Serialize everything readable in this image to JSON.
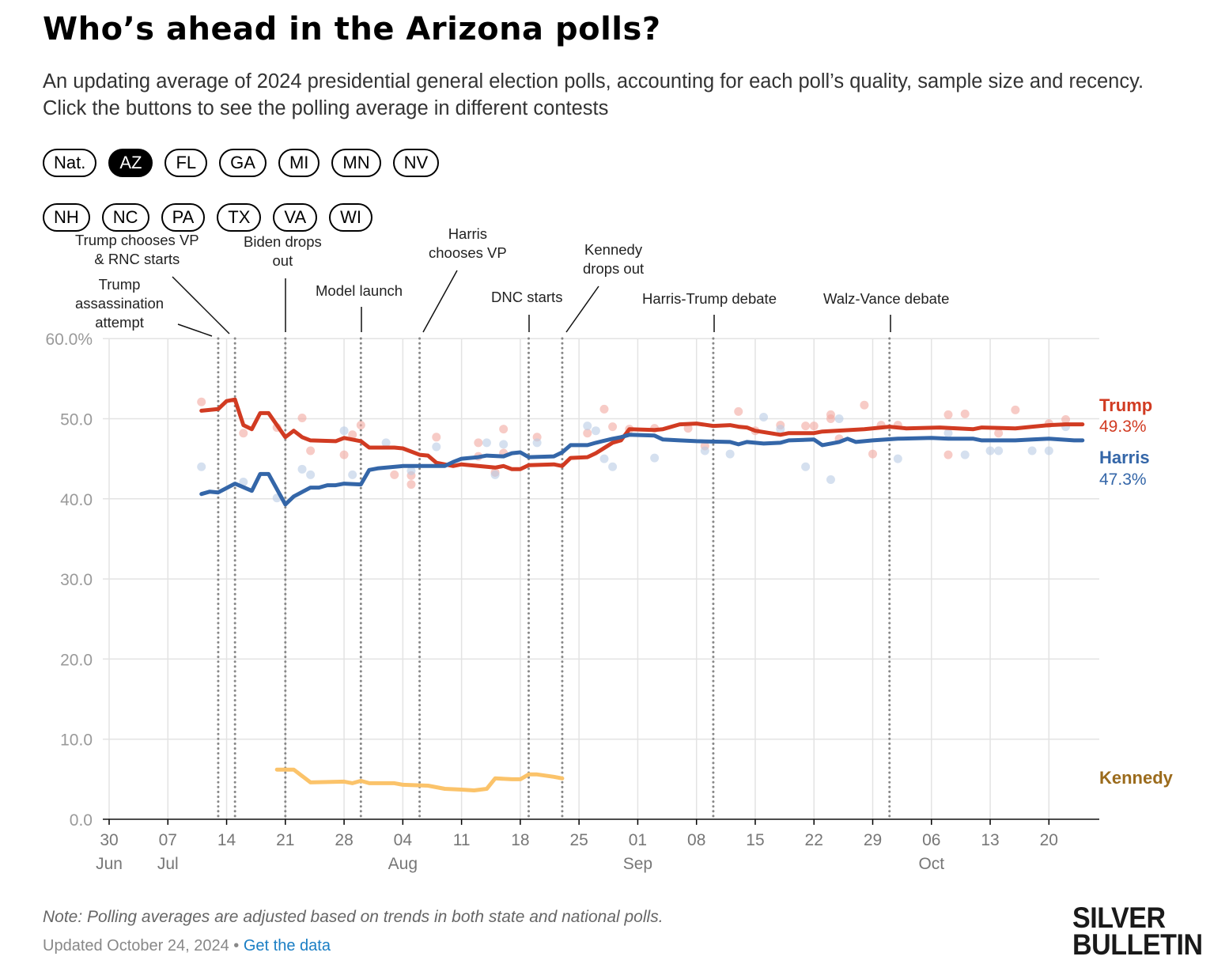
{
  "header": {
    "title": "Who’s ahead in the Arizona polls?",
    "subtitle": "An updating average of 2024 presidential general election polls, accounting for each poll’s quality, sample size and recency. Click the buttons to see the polling average in different contests"
  },
  "contest_buttons": {
    "row1": [
      {
        "label": "Nat.",
        "active": false
      },
      {
        "label": "AZ",
        "active": true
      },
      {
        "label": "FL",
        "active": false
      },
      {
        "label": "GA",
        "active": false
      },
      {
        "label": "MI",
        "active": false
      },
      {
        "label": "MN",
        "active": false
      },
      {
        "label": "NV",
        "active": false
      }
    ],
    "row2": [
      {
        "label": "NH",
        "active": false
      },
      {
        "label": "NC",
        "active": false
      },
      {
        "label": "PA",
        "active": false
      },
      {
        "label": "TX",
        "active": false
      },
      {
        "label": "VA",
        "active": false
      },
      {
        "label": "WI",
        "active": false
      }
    ]
  },
  "chart_data": {
    "type": "line",
    "title": "Who’s ahead in the Arizona polls?",
    "x_origin": "2024-06-30",
    "x_unit": "days since origin",
    "xlim": [
      0,
      118
    ],
    "ylim": [
      0,
      60
    ],
    "grid": true,
    "y_ticks": [
      {
        "value": 0,
        "label": "0.0"
      },
      {
        "value": 10,
        "label": "10.0"
      },
      {
        "value": 20,
        "label": "20.0"
      },
      {
        "value": 30,
        "label": "30.0"
      },
      {
        "value": 40,
        "label": "40.0"
      },
      {
        "value": 50,
        "label": "50.0"
      },
      {
        "value": 60,
        "label": "60.0%"
      }
    ],
    "x_ticks": [
      {
        "day": 0,
        "label": "30",
        "month": "Jun"
      },
      {
        "day": 7,
        "label": "07",
        "month": "Jul"
      },
      {
        "day": 14,
        "label": "14",
        "month": ""
      },
      {
        "day": 21,
        "label": "21",
        "month": ""
      },
      {
        "day": 28,
        "label": "28",
        "month": ""
      },
      {
        "day": 35,
        "label": "04",
        "month": "Aug"
      },
      {
        "day": 42,
        "label": "11",
        "month": ""
      },
      {
        "day": 49,
        "label": "18",
        "month": ""
      },
      {
        "day": 56,
        "label": "25",
        "month": ""
      },
      {
        "day": 63,
        "label": "01",
        "month": "Sep"
      },
      {
        "day": 70,
        "label": "08",
        "month": ""
      },
      {
        "day": 77,
        "label": "15",
        "month": ""
      },
      {
        "day": 84,
        "label": "22",
        "month": ""
      },
      {
        "day": 91,
        "label": "29",
        "month": ""
      },
      {
        "day": 98,
        "label": "06",
        "month": "Oct"
      },
      {
        "day": 105,
        "label": "13",
        "month": ""
      },
      {
        "day": 112,
        "label": "20",
        "month": ""
      }
    ],
    "events": [
      {
        "day": 13,
        "label": "Trump assassination attempt"
      },
      {
        "day": 15,
        "label": "Trump chooses VP & RNC starts"
      },
      {
        "day": 21,
        "label": "Biden drops out"
      },
      {
        "day": 30,
        "label": "Model launch"
      },
      {
        "day": 37,
        "label": "Harris chooses VP"
      },
      {
        "day": 50,
        "label": "DNC starts"
      },
      {
        "day": 54,
        "label": "Kennedy drops out"
      },
      {
        "day": 72,
        "label": "Harris-Trump debate"
      },
      {
        "day": 93,
        "label": "Walz-Vance debate"
      }
    ],
    "series": [
      {
        "name": "Trump",
        "color": "#d13b22",
        "dot_color": "#f2a9a0",
        "final_label": "49.3%",
        "points": [
          [
            11,
            51.0
          ],
          [
            13,
            51.2
          ],
          [
            14,
            52.2
          ],
          [
            15,
            52.4
          ],
          [
            16,
            49.2
          ],
          [
            17,
            48.7
          ],
          [
            18,
            50.7
          ],
          [
            19,
            50.7
          ],
          [
            21,
            47.7
          ],
          [
            22,
            48.5
          ],
          [
            23,
            47.7
          ],
          [
            24,
            47.3
          ],
          [
            27,
            47.2
          ],
          [
            28,
            47.6
          ],
          [
            30,
            47.2
          ],
          [
            31,
            46.4
          ],
          [
            34,
            46.4
          ],
          [
            35,
            46.3
          ],
          [
            37,
            45.5
          ],
          [
            38,
            45.4
          ],
          [
            39,
            44.5
          ],
          [
            41,
            44.1
          ],
          [
            42,
            44.3
          ],
          [
            46,
            43.9
          ],
          [
            47,
            44.1
          ],
          [
            48,
            43.7
          ],
          [
            49,
            43.7
          ],
          [
            50,
            44.2
          ],
          [
            53,
            44.3
          ],
          [
            54,
            44.1
          ],
          [
            55,
            45.1
          ],
          [
            57,
            45.2
          ],
          [
            58,
            45.7
          ],
          [
            60,
            47.0
          ],
          [
            61,
            47.3
          ],
          [
            62,
            48.7
          ],
          [
            65,
            48.6
          ],
          [
            66,
            48.7
          ],
          [
            68,
            49.3
          ],
          [
            70,
            49.4
          ],
          [
            72,
            49.1
          ],
          [
            74,
            49.2
          ],
          [
            75,
            49.0
          ],
          [
            76,
            48.9
          ],
          [
            77,
            48.5
          ],
          [
            80,
            48.0
          ],
          [
            81,
            48.2
          ],
          [
            84,
            48.2
          ],
          [
            85,
            48.4
          ],
          [
            90,
            48.7
          ],
          [
            93,
            49.0
          ],
          [
            95,
            48.8
          ],
          [
            99,
            48.9
          ],
          [
            103,
            48.7
          ],
          [
            104,
            48.9
          ],
          [
            108,
            48.8
          ],
          [
            110,
            49.0
          ],
          [
            112,
            49.2
          ],
          [
            114,
            49.3
          ],
          [
            116,
            49.3
          ]
        ],
        "polls": [
          [
            11,
            52.1
          ],
          [
            16,
            48.2
          ],
          [
            20,
            48.9
          ],
          [
            23,
            50.1
          ],
          [
            24,
            46.0
          ],
          [
            28,
            45.5
          ],
          [
            29,
            48.0
          ],
          [
            30,
            49.2
          ],
          [
            34,
            43.0
          ],
          [
            36,
            41.8
          ],
          [
            36,
            42.9
          ],
          [
            39,
            47.7
          ],
          [
            44,
            45.3
          ],
          [
            44,
            47.0
          ],
          [
            46,
            43.3
          ],
          [
            47,
            48.7
          ],
          [
            47,
            45.7
          ],
          [
            51,
            47.7
          ],
          [
            57,
            48.2
          ],
          [
            59,
            51.2
          ],
          [
            60,
            49.0
          ],
          [
            62,
            48.7
          ],
          [
            65,
            48.8
          ],
          [
            69,
            48.8
          ],
          [
            71,
            46.6
          ],
          [
            75,
            50.9
          ],
          [
            77,
            48.5
          ],
          [
            80,
            49.2
          ],
          [
            83,
            49.1
          ],
          [
            84,
            49.1
          ],
          [
            86,
            50.5
          ],
          [
            86,
            50.0
          ],
          [
            87,
            47.5
          ],
          [
            90,
            51.7
          ],
          [
            91,
            45.6
          ],
          [
            92,
            49.2
          ],
          [
            94,
            49.2
          ],
          [
            100,
            50.5
          ],
          [
            100,
            45.5
          ],
          [
            102,
            50.6
          ],
          [
            106,
            48.2
          ],
          [
            108,
            51.1
          ],
          [
            112,
            49.4
          ],
          [
            114,
            49.9
          ]
        ]
      },
      {
        "name": "Harris",
        "color": "#3466a8",
        "dot_color": "#b9cbe4",
        "final_label": "47.3%",
        "points": [
          [
            11,
            40.6
          ],
          [
            12,
            40.9
          ],
          [
            13,
            40.8
          ],
          [
            15,
            41.9
          ],
          [
            17,
            41.0
          ],
          [
            18,
            43.1
          ],
          [
            19,
            43.1
          ],
          [
            21,
            39.3
          ],
          [
            22,
            40.3
          ],
          [
            24,
            41.4
          ],
          [
            25,
            41.4
          ],
          [
            26,
            41.7
          ],
          [
            27,
            41.7
          ],
          [
            28,
            41.9
          ],
          [
            30,
            41.8
          ],
          [
            31,
            43.6
          ],
          [
            32,
            43.8
          ],
          [
            35,
            44.1
          ],
          [
            40,
            44.1
          ],
          [
            41,
            44.6
          ],
          [
            42,
            45.0
          ],
          [
            44,
            45.2
          ],
          [
            45,
            45.4
          ],
          [
            47,
            45.3
          ],
          [
            48,
            45.7
          ],
          [
            49,
            45.8
          ],
          [
            50,
            45.2
          ],
          [
            53,
            45.3
          ],
          [
            54,
            45.8
          ],
          [
            55,
            46.7
          ],
          [
            57,
            46.7
          ],
          [
            58,
            47.0
          ],
          [
            60,
            47.5
          ],
          [
            61,
            47.7
          ],
          [
            62,
            48.0
          ],
          [
            65,
            47.9
          ],
          [
            66,
            47.4
          ],
          [
            68,
            47.3
          ],
          [
            70,
            47.2
          ],
          [
            74,
            47.1
          ],
          [
            75,
            46.8
          ],
          [
            76,
            47.1
          ],
          [
            78,
            46.9
          ],
          [
            80,
            47.0
          ],
          [
            81,
            47.3
          ],
          [
            84,
            47.4
          ],
          [
            85,
            46.7
          ],
          [
            87,
            47.1
          ],
          [
            88,
            47.5
          ],
          [
            89,
            47.1
          ],
          [
            91,
            47.3
          ],
          [
            94,
            47.5
          ],
          [
            98,
            47.6
          ],
          [
            100,
            47.5
          ],
          [
            103,
            47.5
          ],
          [
            104,
            47.3
          ],
          [
            108,
            47.3
          ],
          [
            110,
            47.4
          ],
          [
            112,
            47.5
          ],
          [
            115,
            47.3
          ],
          [
            116,
            47.3
          ]
        ],
        "polls": [
          [
            11,
            44.0
          ],
          [
            16,
            42.1
          ],
          [
            20,
            40.1
          ],
          [
            23,
            43.7
          ],
          [
            24,
            43.0
          ],
          [
            28,
            48.5
          ],
          [
            29,
            43.0
          ],
          [
            33,
            47.0
          ],
          [
            36,
            43.5
          ],
          [
            39,
            46.5
          ],
          [
            45,
            47.0
          ],
          [
            46,
            43.0
          ],
          [
            47,
            46.8
          ],
          [
            51,
            47.0
          ],
          [
            57,
            49.1
          ],
          [
            58,
            48.5
          ],
          [
            59,
            45.0
          ],
          [
            60,
            44.0
          ],
          [
            65,
            45.1
          ],
          [
            71,
            46.0
          ],
          [
            74,
            45.6
          ],
          [
            78,
            50.2
          ],
          [
            80,
            48.7
          ],
          [
            83,
            44.0
          ],
          [
            86,
            42.4
          ],
          [
            87,
            50.0
          ],
          [
            94,
            45.0
          ],
          [
            100,
            48.2
          ],
          [
            102,
            45.5
          ],
          [
            105,
            46.0
          ],
          [
            106,
            46.0
          ],
          [
            110,
            46.0
          ],
          [
            112,
            46.0
          ],
          [
            114,
            49.0
          ]
        ]
      },
      {
        "name": "Kennedy",
        "color": "#fbc36a",
        "label_color": "#9b6b1c",
        "final_label": "",
        "points": [
          [
            20,
            6.2
          ],
          [
            22,
            6.2
          ],
          [
            24,
            4.6
          ],
          [
            28,
            4.7
          ],
          [
            29,
            4.5
          ],
          [
            30,
            4.8
          ],
          [
            31,
            4.5
          ],
          [
            34,
            4.5
          ],
          [
            35,
            4.3
          ],
          [
            38,
            4.2
          ],
          [
            40,
            3.8
          ],
          [
            42,
            3.7
          ],
          [
            43.5,
            3.6
          ],
          [
            45,
            3.8
          ],
          [
            46,
            5.1
          ],
          [
            48,
            5.0
          ],
          [
            49,
            5.0
          ],
          [
            50,
            5.6
          ],
          [
            51,
            5.6
          ],
          [
            53,
            5.3
          ],
          [
            54,
            5.1
          ]
        ],
        "polls": []
      }
    ]
  },
  "footer": {
    "note": "Note: Polling averages are adjusted based on trends in both state and national polls.",
    "updated": "Updated October 24, 2024",
    "separator": "•",
    "link": "Get the data",
    "logo_line1": "SILVER",
    "logo_line2": "BULLETIN"
  }
}
